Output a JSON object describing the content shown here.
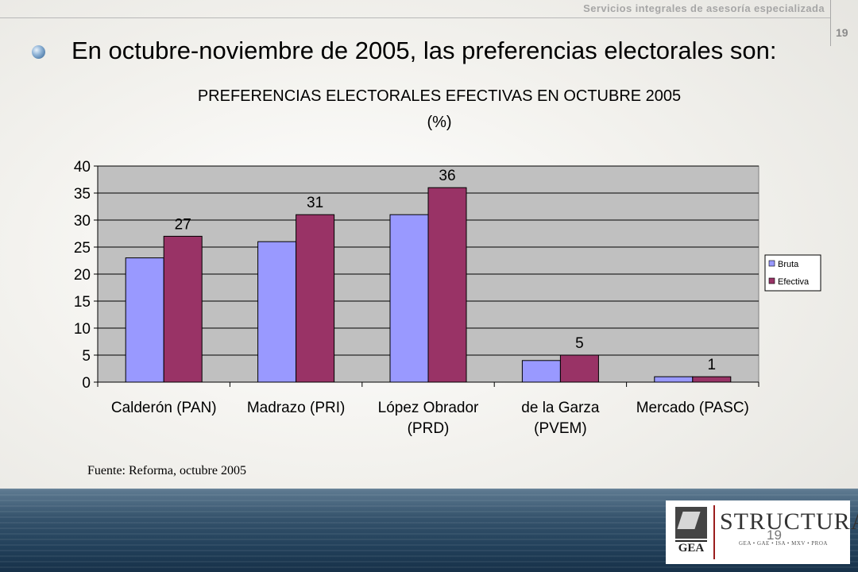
{
  "header": {
    "tagline": "Servicios integrales de asesoría especializada",
    "page_number": "19"
  },
  "slide": {
    "heading": "En octubre-noviembre de 2005, las preferencias electorales son:",
    "source": "Fuente: Reforma, octubre 2005"
  },
  "footer": {
    "page_number": "19",
    "logo_gea": "GEA",
    "logo_structura": "STRUCTURA",
    "logo_structura_sub": "GEA • GAE • ISA • MXV • PROA"
  },
  "colors": {
    "bruta": "#9999ff",
    "efectiva": "#993366",
    "plot_bg": "#c0c0c0"
  },
  "chart_data": {
    "type": "bar",
    "title": "PREFERENCIAS ELECTORALES EFECTIVAS EN OCTUBRE 2005",
    "subtitle": "(%)",
    "categories": [
      "Calderón (PAN)",
      "Madrazo (PRI)",
      "López Obrador (PRD)",
      "de la Garza (PVEM)",
      "Mercado (PASC)"
    ],
    "category_lines": [
      [
        "Calderón (PAN)"
      ],
      [
        "Madrazo (PRI)"
      ],
      [
        "López Obrador",
        "(PRD)"
      ],
      [
        "de la Garza",
        "(PVEM)"
      ],
      [
        "Mercado (PASC)"
      ]
    ],
    "series": [
      {
        "name": "Bruta",
        "values": [
          23,
          26,
          31,
          4,
          1
        ],
        "color": "#9999ff"
      },
      {
        "name": "Efectiva",
        "values": [
          27,
          31,
          36,
          5,
          1
        ],
        "color": "#993366"
      }
    ],
    "data_labels": [
      "27",
      "31",
      "36",
      "5",
      "1"
    ],
    "ylim": [
      0,
      40
    ],
    "yticks": [
      0,
      5,
      10,
      15,
      20,
      25,
      30,
      35,
      40
    ],
    "grid": true,
    "legend": "right"
  }
}
